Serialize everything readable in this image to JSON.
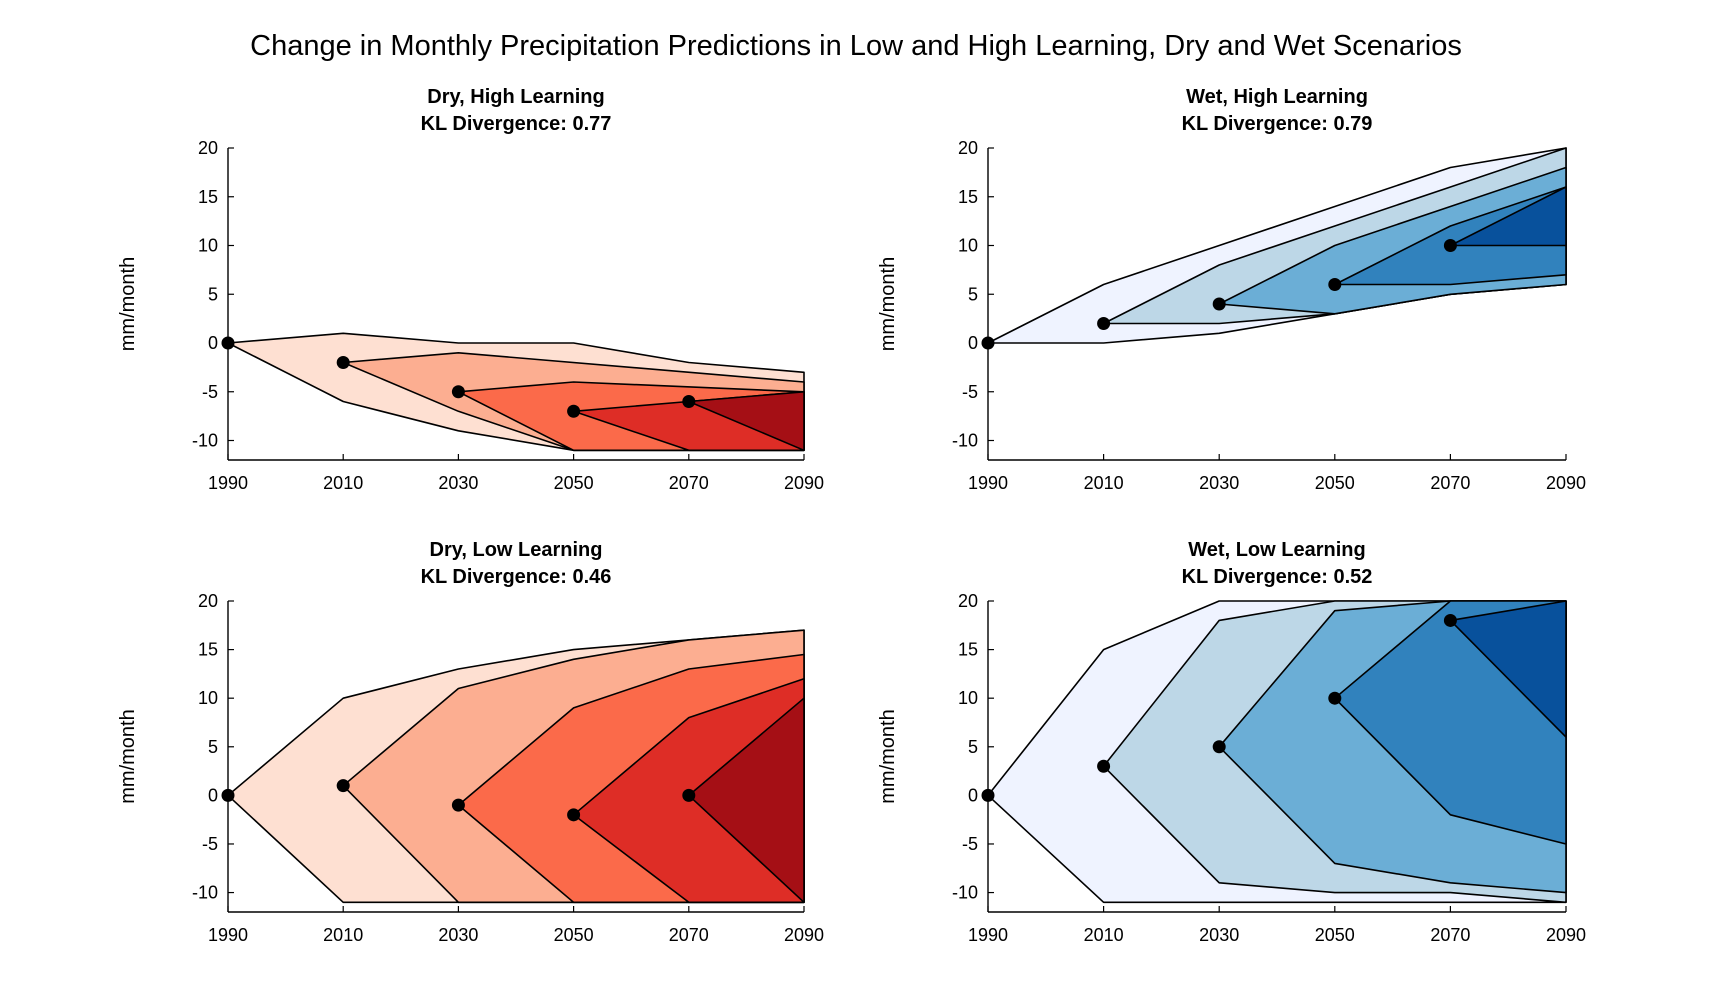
{
  "title": "Change in Monthly Precipitation Predictions in Low and High Learning, Dry and Wet Scenarios",
  "chart_data": [
    {
      "type": "area",
      "id": "dry-high",
      "title": "Dry, High Learning",
      "subtitle": "KL Divergence: 0.77",
      "ylabel": "mm/month",
      "xlabel": "",
      "xlim": [
        1990,
        2090
      ],
      "ylim": [
        -12,
        20
      ],
      "xticks": [
        1990,
        2010,
        2030,
        2050,
        2070,
        2090
      ],
      "yticks": [
        20,
        15,
        10,
        5,
        0,
        -5,
        -10
      ],
      "colors": [
        "#fee0d2",
        "#fcae91",
        "#fb6a4a",
        "#de2d26",
        "#a50f15"
      ],
      "points": [
        [
          1990,
          0
        ],
        [
          2010,
          -2
        ],
        [
          2030,
          -5
        ],
        [
          2050,
          -7
        ],
        [
          2070,
          -6
        ]
      ],
      "regions": [
        {
          "upper": [
            [
              1990,
              0
            ],
            [
              2010,
              1
            ],
            [
              2030,
              0
            ],
            [
              2050,
              0
            ],
            [
              2070,
              -2
            ],
            [
              2090,
              -3
            ]
          ],
          "lower": [
            [
              1990,
              0
            ],
            [
              2010,
              -6
            ],
            [
              2030,
              -9
            ],
            [
              2050,
              -11
            ],
            [
              2090,
              -11
            ]
          ]
        },
        {
          "upper": [
            [
              2010,
              -2
            ],
            [
              2030,
              -1
            ],
            [
              2090,
              -4
            ]
          ],
          "lower": [
            [
              2010,
              -2
            ],
            [
              2030,
              -7
            ],
            [
              2050,
              -11
            ],
            [
              2090,
              -11
            ]
          ]
        },
        {
          "upper": [
            [
              2030,
              -5
            ],
            [
              2050,
              -4
            ],
            [
              2090,
              -5
            ]
          ],
          "lower": [
            [
              2030,
              -5
            ],
            [
              2050,
              -11
            ],
            [
              2090,
              -11
            ]
          ]
        },
        {
          "upper": [
            [
              2050,
              -7
            ],
            [
              2070,
              -6
            ],
            [
              2090,
              -5
            ]
          ],
          "lower": [
            [
              2050,
              -7
            ],
            [
              2070,
              -11
            ],
            [
              2090,
              -11
            ]
          ]
        },
        {
          "upper": [
            [
              2070,
              -6
            ],
            [
              2090,
              -5
            ]
          ],
          "lower": [
            [
              2070,
              -6
            ],
            [
              2090,
              -11
            ]
          ]
        }
      ]
    },
    {
      "type": "area",
      "id": "wet-high",
      "title": "Wet, High Learning",
      "subtitle": "KL Divergence: 0.79",
      "ylabel": "mm/month",
      "xlabel": "",
      "xlim": [
        1990,
        2090
      ],
      "ylim": [
        -12,
        20
      ],
      "xticks": [
        1990,
        2010,
        2030,
        2050,
        2070,
        2090
      ],
      "yticks": [
        20,
        15,
        10,
        5,
        0,
        -5,
        -10
      ],
      "colors": [
        "#eff3ff",
        "#bdd7e7",
        "#6baed6",
        "#3182bd",
        "#08519c"
      ],
      "points": [
        [
          1990,
          0
        ],
        [
          2010,
          2
        ],
        [
          2030,
          4
        ],
        [
          2050,
          6
        ],
        [
          2070,
          10
        ]
      ],
      "regions": [
        {
          "upper": [
            [
              1990,
              0
            ],
            [
              2010,
              6
            ],
            [
              2030,
              10
            ],
            [
              2050,
              14
            ],
            [
              2070,
              18
            ],
            [
              2090,
              20
            ]
          ],
          "lower": [
            [
              1990,
              0
            ],
            [
              2010,
              0
            ],
            [
              2030,
              1
            ],
            [
              2050,
              3
            ],
            [
              2070,
              5
            ],
            [
              2090,
              6
            ]
          ]
        },
        {
          "upper": [
            [
              2010,
              2
            ],
            [
              2030,
              8
            ],
            [
              2050,
              12
            ],
            [
              2070,
              16
            ],
            [
              2090,
              20
            ]
          ],
          "lower": [
            [
              2010,
              2
            ],
            [
              2030,
              2
            ],
            [
              2050,
              3
            ],
            [
              2070,
              5
            ],
            [
              2090,
              6
            ]
          ]
        },
        {
          "upper": [
            [
              2030,
              4
            ],
            [
              2050,
              10
            ],
            [
              2070,
              14
            ],
            [
              2090,
              18
            ]
          ],
          "lower": [
            [
              2030,
              4
            ],
            [
              2050,
              3
            ],
            [
              2070,
              5
            ],
            [
              2090,
              6
            ]
          ]
        },
        {
          "upper": [
            [
              2050,
              6
            ],
            [
              2070,
              12
            ],
            [
              2090,
              16
            ]
          ],
          "lower": [
            [
              2050,
              6
            ],
            [
              2070,
              6
            ],
            [
              2090,
              7
            ]
          ]
        },
        {
          "upper": [
            [
              2070,
              10
            ],
            [
              2090,
              16
            ]
          ],
          "lower": [
            [
              2070,
              10
            ],
            [
              2090,
              10
            ]
          ]
        }
      ]
    },
    {
      "type": "area",
      "id": "dry-low",
      "title": "Dry, Low Learning",
      "subtitle": "KL Divergence: 0.46",
      "ylabel": "mm/month",
      "xlabel": "",
      "xlim": [
        1990,
        2090
      ],
      "ylim": [
        -12,
        20
      ],
      "xticks": [
        1990,
        2010,
        2030,
        2050,
        2070,
        2090
      ],
      "yticks": [
        20,
        15,
        10,
        5,
        0,
        -5,
        -10
      ],
      "colors": [
        "#fee0d2",
        "#fcae91",
        "#fb6a4a",
        "#de2d26",
        "#a50f15"
      ],
      "points": [
        [
          1990,
          0
        ],
        [
          2010,
          1
        ],
        [
          2030,
          -1
        ],
        [
          2050,
          -2
        ],
        [
          2070,
          0
        ]
      ],
      "regions": [
        {
          "upper": [
            [
              1990,
              0
            ],
            [
              2010,
              10
            ],
            [
              2030,
              13
            ],
            [
              2050,
              15
            ],
            [
              2070,
              16
            ],
            [
              2090,
              17
            ]
          ],
          "lower": [
            [
              1990,
              0
            ],
            [
              2010,
              -11
            ],
            [
              2090,
              -11
            ]
          ]
        },
        {
          "upper": [
            [
              2010,
              1
            ],
            [
              2030,
              11
            ],
            [
              2050,
              14
            ],
            [
              2070,
              16
            ],
            [
              2090,
              17
            ]
          ],
          "lower": [
            [
              2010,
              1
            ],
            [
              2030,
              -11
            ],
            [
              2090,
              -11
            ]
          ]
        },
        {
          "upper": [
            [
              2030,
              -1
            ],
            [
              2050,
              9
            ],
            [
              2070,
              13
            ],
            [
              2090,
              14.5
            ]
          ],
          "lower": [
            [
              2030,
              -1
            ],
            [
              2050,
              -11
            ],
            [
              2090,
              -11
            ]
          ]
        },
        {
          "upper": [
            [
              2050,
              -2
            ],
            [
              2070,
              8
            ],
            [
              2090,
              12
            ]
          ],
          "lower": [
            [
              2050,
              -2
            ],
            [
              2070,
              -11
            ],
            [
              2090,
              -11
            ]
          ]
        },
        {
          "upper": [
            [
              2070,
              0
            ],
            [
              2090,
              10
            ]
          ],
          "lower": [
            [
              2070,
              0
            ],
            [
              2090,
              -11
            ]
          ]
        }
      ]
    },
    {
      "type": "area",
      "id": "wet-low",
      "title": "Wet, Low Learning",
      "subtitle": "KL Divergence: 0.52",
      "ylabel": "mm/month",
      "xlabel": "",
      "xlim": [
        1990,
        2090
      ],
      "ylim": [
        -12,
        20
      ],
      "xticks": [
        1990,
        2010,
        2030,
        2050,
        2070,
        2090
      ],
      "yticks": [
        20,
        15,
        10,
        5,
        0,
        -5,
        -10
      ],
      "colors": [
        "#eff3ff",
        "#bdd7e7",
        "#6baed6",
        "#3182bd",
        "#08519c"
      ],
      "points": [
        [
          1990,
          0
        ],
        [
          2010,
          3
        ],
        [
          2030,
          5
        ],
        [
          2050,
          10
        ],
        [
          2070,
          18
        ]
      ],
      "regions": [
        {
          "upper": [
            [
              1990,
              0
            ],
            [
              2010,
              15
            ],
            [
              2030,
              20
            ],
            [
              2090,
              20
            ]
          ],
          "lower": [
            [
              1990,
              0
            ],
            [
              2010,
              -11
            ],
            [
              2090,
              -11
            ]
          ]
        },
        {
          "upper": [
            [
              2010,
              3
            ],
            [
              2030,
              18
            ],
            [
              2050,
              20
            ],
            [
              2090,
              20
            ]
          ],
          "lower": [
            [
              2010,
              3
            ],
            [
              2030,
              -9
            ],
            [
              2050,
              -10
            ],
            [
              2070,
              -10
            ],
            [
              2090,
              -11
            ]
          ]
        },
        {
          "upper": [
            [
              2030,
              5
            ],
            [
              2050,
              19
            ],
            [
              2070,
              20
            ],
            [
              2090,
              20
            ]
          ],
          "lower": [
            [
              2030,
              5
            ],
            [
              2050,
              -7
            ],
            [
              2070,
              -9
            ],
            [
              2090,
              -10
            ]
          ]
        },
        {
          "upper": [
            [
              2050,
              10
            ],
            [
              2070,
              20
            ],
            [
              2090,
              20
            ]
          ],
          "lower": [
            [
              2050,
              10
            ],
            [
              2070,
              -2
            ],
            [
              2090,
              -5
            ]
          ]
        },
        {
          "upper": [
            [
              2070,
              18
            ],
            [
              2090,
              20
            ]
          ],
          "lower": [
            [
              2070,
              18
            ],
            [
              2090,
              6
            ]
          ]
        }
      ]
    }
  ]
}
